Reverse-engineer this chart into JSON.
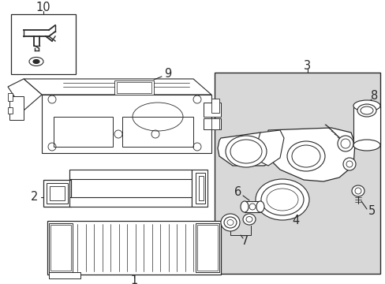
{
  "bg_color": "#ffffff",
  "line_color": "#2a2a2a",
  "gray_fill": "#d8d8d8",
  "white_fill": "#ffffff",
  "font_size": 9.5
}
